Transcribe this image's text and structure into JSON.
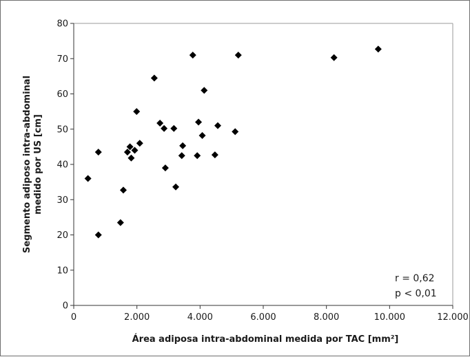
{
  "chart_data": {
    "type": "scatter",
    "title": "",
    "xlabel": "Área adiposa intra-abdominal medida por TAC [mm²]",
    "ylabel_lines": [
      "Segmento adiposo intra-abdominal",
      "medido por US [cm]"
    ],
    "xlim": [
      0,
      12000
    ],
    "ylim": [
      0,
      80
    ],
    "x_ticks": [
      0,
      2000,
      4000,
      6000,
      8000,
      10000,
      12000
    ],
    "x_tick_labels": [
      "0",
      "2.000",
      "4.000",
      "6.000",
      "8.000",
      "10.000",
      "12.000"
    ],
    "y_ticks": [
      0,
      10,
      20,
      30,
      40,
      50,
      60,
      70,
      80
    ],
    "y_tick_labels": [
      "0",
      "10",
      "20",
      "30",
      "40",
      "50",
      "60",
      "70",
      "80"
    ],
    "grid": false,
    "legend": false,
    "marker": "diamond",
    "marker_color": "#000000",
    "annotations": [
      "r = 0,62",
      "p < 0,01"
    ],
    "points": [
      {
        "x": 450,
        "y": 36
      },
      {
        "x": 780,
        "y": 43.5
      },
      {
        "x": 780,
        "y": 20
      },
      {
        "x": 1480,
        "y": 23.5
      },
      {
        "x": 1570,
        "y": 32.7
      },
      {
        "x": 1700,
        "y": 43.5
      },
      {
        "x": 1780,
        "y": 45
      },
      {
        "x": 1820,
        "y": 41.8
      },
      {
        "x": 1930,
        "y": 44
      },
      {
        "x": 1990,
        "y": 55
      },
      {
        "x": 2090,
        "y": 46
      },
      {
        "x": 2550,
        "y": 64.5
      },
      {
        "x": 2730,
        "y": 51.7
      },
      {
        "x": 2860,
        "y": 50.2
      },
      {
        "x": 2900,
        "y": 39
      },
      {
        "x": 3170,
        "y": 50.2
      },
      {
        "x": 3230,
        "y": 33.6
      },
      {
        "x": 3420,
        "y": 42.5
      },
      {
        "x": 3450,
        "y": 45.3
      },
      {
        "x": 3770,
        "y": 71
      },
      {
        "x": 3910,
        "y": 42.5
      },
      {
        "x": 3950,
        "y": 52
      },
      {
        "x": 4070,
        "y": 48.2
      },
      {
        "x": 4130,
        "y": 61
      },
      {
        "x": 4470,
        "y": 42.7
      },
      {
        "x": 4560,
        "y": 51
      },
      {
        "x": 5110,
        "y": 49.3
      },
      {
        "x": 5210,
        "y": 71
      },
      {
        "x": 8240,
        "y": 70.3
      },
      {
        "x": 9640,
        "y": 72.7
      }
    ]
  }
}
